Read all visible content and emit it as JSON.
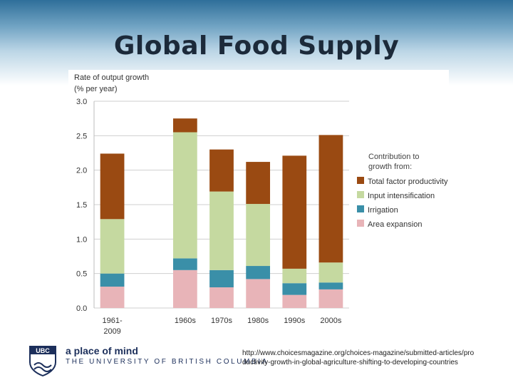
{
  "slide": {
    "title": "Global Food Supply",
    "tagline": "a place of mind",
    "university": "THE UNIVERSITY OF BRITISH COLUMBIA",
    "logo_text": "UBC",
    "source": "http://www.choicesmagazine.org/choices-magazine/submitted-articles/productivity-growth-in-global-agriculture-shifting-to-developing-countries"
  },
  "chart_data": {
    "type": "bar",
    "stacked": true,
    "ylabel": "Rate of output growth (% per year)",
    "ylabel_lines": [
      "Rate of output growth",
      "(% per year)"
    ],
    "ylim": [
      0,
      3
    ],
    "yticks": [
      0,
      0.5,
      1,
      1.5,
      2,
      2.5,
      3
    ],
    "ytick_labels": [
      "0.0",
      "0.5",
      "1.0",
      "1.5",
      "2.0",
      "2.5",
      "3.0"
    ],
    "grid": true,
    "categories": [
      "1961-2009",
      "1960s",
      "1970s",
      "1980s",
      "1990s",
      "2000s"
    ],
    "category_labels": [
      [
        "1961-",
        "2009"
      ],
      [
        "1960s"
      ],
      [
        "1970s"
      ],
      [
        "1980s"
      ],
      [
        "1990s"
      ],
      [
        "2000s"
      ]
    ],
    "legend_title_lines": [
      "Contribution to",
      "growth from:"
    ],
    "legend_position": "right",
    "series": [
      {
        "name": "Area expansion",
        "color": "#e8b4b8",
        "values": [
          0.31,
          0.55,
          0.3,
          0.42,
          0.19,
          0.27
        ]
      },
      {
        "name": "Irrigation",
        "color": "#3a8fa8",
        "values": [
          0.19,
          0.17,
          0.25,
          0.19,
          0.17,
          0.1
        ]
      },
      {
        "name": "Input intensification",
        "color": "#c5d9a0",
        "values": [
          0.79,
          1.83,
          1.14,
          0.9,
          0.21,
          0.29
        ]
      },
      {
        "name": "Total factor productivity",
        "color": "#9a4a12",
        "values": [
          0.95,
          0.2,
          0.61,
          0.61,
          1.64,
          1.85
        ]
      }
    ]
  }
}
